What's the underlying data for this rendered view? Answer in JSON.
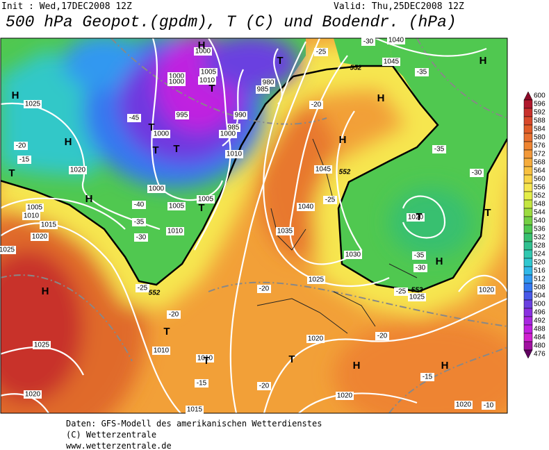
{
  "header": {
    "init": "Init : Wed,17DEC2008 12Z",
    "valid": "Valid: Thu,25DEC2008 12Z",
    "title": "500 hPa Geopot.(gpdm), T (C) und Bodendr. (hPa)"
  },
  "colorbar": {
    "labels": [
      "600",
      "596",
      "592",
      "588",
      "584",
      "580",
      "576",
      "572",
      "568",
      "564",
      "560",
      "556",
      "552",
      "548",
      "544",
      "540",
      "536",
      "532",
      "528",
      "524",
      "520",
      "516",
      "512",
      "508",
      "504",
      "500",
      "496",
      "492",
      "488",
      "484",
      "480",
      "476"
    ],
    "colors": [
      "#8c0a28",
      "#b0182c",
      "#c8302c",
      "#d8482a",
      "#e05c28",
      "#e87030",
      "#ee8430",
      "#f29838",
      "#f6ac3c",
      "#f8c040",
      "#f8d448",
      "#f6e650",
      "#e4ee48",
      "#c4e640",
      "#9cdc40",
      "#74d044",
      "#50c850",
      "#38c070",
      "#30c090",
      "#30c8b0",
      "#30c8d0",
      "#30b8e8",
      "#3098f0",
      "#3478f0",
      "#4858e8",
      "#6a40e0",
      "#8a30e0",
      "#a828e0",
      "#c020e0",
      "#d020d0",
      "#a010a0",
      "#600060"
    ]
  },
  "map_labels": {
    "highs": [
      "H",
      "H",
      "H",
      "H",
      "H",
      "H",
      "H",
      "H",
      "H",
      "H",
      "H"
    ],
    "lows": [
      "T",
      "T",
      "T",
      "T",
      "T",
      "T",
      "T",
      "T",
      "T",
      "T",
      "T",
      "T"
    ],
    "isobars": [
      "1000",
      "1005",
      "1010",
      "1000",
      "1000",
      "995",
      "1000",
      "990",
      "985",
      "1000",
      "980",
      "985",
      "1010",
      "1020",
      "1000",
      "1005",
      "1005",
      "1010",
      "1005",
      "1010",
      "1015",
      "1020",
      "1025",
      "1025",
      "1045",
      "1040",
      "1045",
      "1040",
      "1035",
      "1030",
      "1025",
      "1020",
      "1020",
      "1025",
      "1020",
      "1025",
      "1010",
      "1010",
      "1020",
      "1020",
      "1020",
      "1015"
    ],
    "isotherms": [
      "-25",
      "-30",
      "-35",
      "-20",
      "-45",
      "-40",
      "-35",
      "-30",
      "-25",
      "-20",
      "-15",
      "-20",
      "-20",
      "-20",
      "-15",
      "-10",
      "-25",
      "-30",
      "-35",
      "-35",
      "-30",
      "-25",
      "-20",
      "-15"
    ],
    "contour_552": [
      "552",
      "552",
      "552",
      "552"
    ]
  },
  "footer": {
    "line1": "Daten: GFS-Modell des amerikanischen Wetterdienstes",
    "line2": "(C) Wetterzentrale",
    "line3": "www.wetterzentrale.de"
  }
}
